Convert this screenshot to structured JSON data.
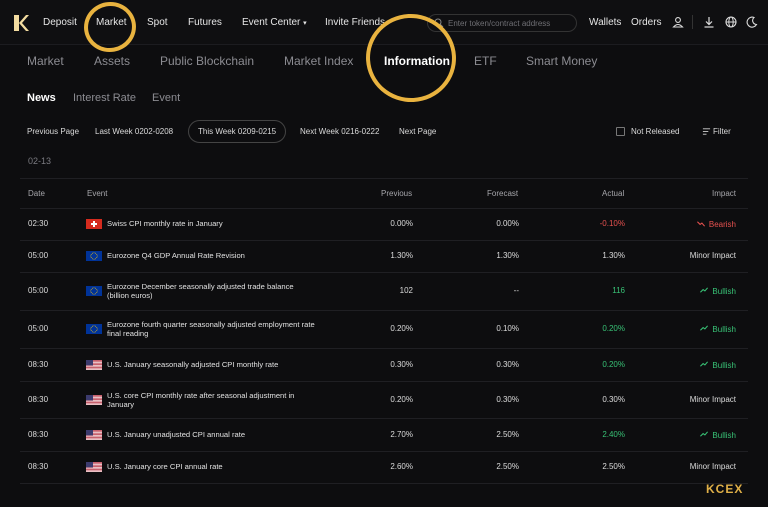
{
  "topnav": {
    "items": [
      "Deposit",
      "Market",
      "Spot",
      "Futures",
      "Event Center",
      "Invite Friends"
    ],
    "event_center_caret": "▾",
    "search_placeholder": "Enter token/contract address",
    "wallets": "Wallets",
    "orders": "Orders"
  },
  "subnav": {
    "items": [
      "Market",
      "Assets",
      "Public Blockchain",
      "Market Index",
      "Information",
      "ETF",
      "Smart Money"
    ],
    "active": "Information"
  },
  "tabs": {
    "items": [
      "News",
      "Interest Rate",
      "Event"
    ],
    "active": "News"
  },
  "weeks": {
    "previous_page": "Previous Page",
    "last_week": "Last Week 0202-0208",
    "this_week": "This Week 0209-0215",
    "next_week": "Next Week 0216-0222",
    "next_page": "Next Page",
    "not_released": "Not Released",
    "filter": "Filter"
  },
  "date_label": "02-13",
  "table": {
    "headers": {
      "date": "Date",
      "event": "Event",
      "previous": "Previous",
      "forecast": "Forecast",
      "actual": "Actual",
      "impact": "Impact"
    },
    "rows": [
      {
        "time": "02:30",
        "flag": "ch",
        "event": "Swiss CPI monthly rate in January",
        "previous": "0.00%",
        "forecast": "0.00%",
        "actual": "-0.10%",
        "actual_color": "red",
        "impact": "Bearish",
        "impact_kind": "bearish"
      },
      {
        "time": "05:00",
        "flag": "eu",
        "event": "Eurozone Q4 GDP Annual Rate Revision",
        "previous": "1.30%",
        "forecast": "1.30%",
        "actual": "1.30%",
        "actual_color": "white",
        "impact": "Minor Impact",
        "impact_kind": "minor"
      },
      {
        "time": "05:00",
        "flag": "eu",
        "event": "Eurozone December seasonally adjusted trade balance (billion euros)",
        "previous": "102",
        "forecast": "--",
        "actual": "116",
        "actual_color": "green",
        "impact": "Bullish",
        "impact_kind": "bullish"
      },
      {
        "time": "05:00",
        "flag": "eu",
        "event": "Eurozone fourth quarter seasonally adjusted employment rate final reading",
        "previous": "0.20%",
        "forecast": "0.10%",
        "actual": "0.20%",
        "actual_color": "green",
        "impact": "Bullish",
        "impact_kind": "bullish"
      },
      {
        "time": "08:30",
        "flag": "us",
        "event": "U.S. January seasonally adjusted CPI monthly rate",
        "previous": "0.30%",
        "forecast": "0.30%",
        "actual": "0.20%",
        "actual_color": "green",
        "impact": "Bullish",
        "impact_kind": "bullish"
      },
      {
        "time": "08:30",
        "flag": "us",
        "event": "U.S. core CPI monthly rate after seasonal adjustment in January",
        "previous": "0.20%",
        "forecast": "0.30%",
        "actual": "0.30%",
        "actual_color": "white",
        "impact": "Minor Impact",
        "impact_kind": "minor"
      },
      {
        "time": "08:30",
        "flag": "us",
        "event": "U.S. January unadjusted CPI annual rate",
        "previous": "2.70%",
        "forecast": "2.50%",
        "actual": "2.40%",
        "actual_color": "green",
        "impact": "Bullish",
        "impact_kind": "bullish"
      },
      {
        "time": "08:30",
        "flag": "us",
        "event": "U.S. January core CPI annual rate",
        "previous": "2.60%",
        "forecast": "2.50%",
        "actual": "2.50%",
        "actual_color": "white",
        "impact": "Minor Impact",
        "impact_kind": "minor"
      }
    ]
  },
  "brand": "KCEX",
  "colors": {
    "accent_ring": "#e9b33f",
    "bearish": "#e6514f",
    "bullish": "#38c276"
  }
}
